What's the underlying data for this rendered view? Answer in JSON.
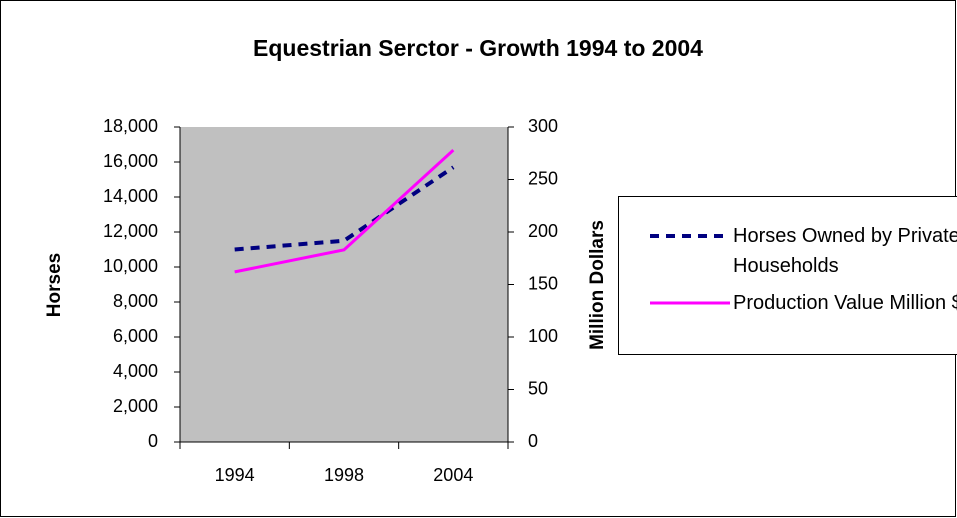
{
  "chart_data": {
    "type": "line",
    "title": "Equestrian Serctor - Growth 1994 to 2004",
    "y_label": "Horses",
    "y2_label": "Million Dollars",
    "categories": [
      "1994",
      "1998",
      "2004"
    ],
    "series": [
      {
        "name": "Horses Owned by Private Households",
        "color": "#000080",
        "dashed": true,
        "values": [
          11000,
          11500,
          15700
        ]
      },
      {
        "name": "Production Value Million $",
        "color": "#ff00ff",
        "axis": "y2",
        "values": [
          162,
          183,
          278
        ]
      }
    ],
    "ylim": [
      0,
      18000
    ],
    "yticks": [
      0,
      {
        "value": 2000,
        "label": "2,000"
      },
      {
        "value": 4000,
        "label": "4,000"
      },
      {
        "value": 6000,
        "label": "6,000"
      },
      {
        "value": 8000,
        "label": "8,000"
      },
      {
        "value": 10000,
        "label": "10,000"
      },
      {
        "value": 12000,
        "label": "12,000"
      },
      {
        "value": 14000,
        "label": "14,000"
      },
      {
        "value": 16000,
        "label": "16,000"
      },
      {
        "value": 18000,
        "label": "18,000"
      }
    ],
    "y2lim": [
      0,
      300
    ],
    "y2ticks": [
      0,
      50,
      100,
      150,
      200,
      250,
      300
    ],
    "plot_background": "#c0c0c0",
    "legend": "right"
  }
}
